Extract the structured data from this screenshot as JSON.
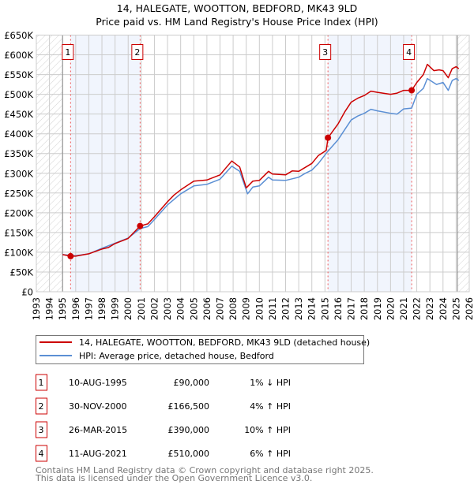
{
  "chart_data": {
    "type": "line",
    "title": "14, HALEGATE, WOOTTON, BEDFORD, MK43 9LD",
    "subtitle": "Price paid vs. HM Land Registry's House Price Index (HPI)",
    "xlabel": "",
    "ylabel": "",
    "xlim": [
      1993,
      2026
    ],
    "ylim": [
      0,
      650000
    ],
    "grid": true,
    "x_ticks": [
      "1993",
      "1994",
      "1995",
      "1996",
      "1997",
      "1998",
      "1999",
      "2000",
      "2001",
      "2002",
      "2003",
      "2004",
      "2005",
      "2006",
      "2007",
      "2008",
      "2009",
      "2010",
      "2011",
      "2012",
      "2013",
      "2014",
      "2015",
      "2016",
      "2017",
      "2018",
      "2019",
      "2020",
      "2021",
      "2022",
      "2023",
      "2024",
      "2025",
      "2026"
    ],
    "y_ticks": [
      {
        "value": 0,
        "label": "£0"
      },
      {
        "value": 50000,
        "label": "£50K"
      },
      {
        "value": 100000,
        "label": "£100K"
      },
      {
        "value": 150000,
        "label": "£150K"
      },
      {
        "value": 200000,
        "label": "£200K"
      },
      {
        "value": 250000,
        "label": "£250K"
      },
      {
        "value": 300000,
        "label": "£300K"
      },
      {
        "value": 350000,
        "label": "£350K"
      },
      {
        "value": 400000,
        "label": "£400K"
      },
      {
        "value": 450000,
        "label": "£450K"
      },
      {
        "value": 500000,
        "label": "£500K"
      },
      {
        "value": 550000,
        "label": "£550K"
      },
      {
        "value": 600000,
        "label": "£600K"
      },
      {
        "value": 650000,
        "label": "£650K"
      }
    ],
    "data_range": [
      1995.0,
      2025.1
    ],
    "shaded_periods": [
      [
        1995.61,
        2000.91
      ],
      [
        2015.23,
        2021.61
      ]
    ],
    "series": [
      {
        "name": "14, HALEGATE, WOOTTON, BEDFORD, MK43 9LD (detached house)",
        "color": "#cc0000",
        "x": [
          1995.0,
          1995.61,
          1996,
          1997,
          1998,
          1998.5,
          1999,
          2000,
          2000.91,
          2001.5,
          2002,
          2003,
          2003.5,
          2004,
          2005,
          2006,
          2007,
          2007.9,
          2008.5,
          2009.0,
          2009.5,
          2010,
          2010.7,
          2011,
          2012,
          2012.5,
          2013,
          2013.5,
          2014,
          2014.5,
          2015.1,
          2015.23,
          2016,
          2016.5,
          2017,
          2017.5,
          2018,
          2018.5,
          2019,
          2020,
          2020.5,
          2021,
          2021.61,
          2022,
          2022.5,
          2022.8,
          2023.3,
          2023.7,
          2024,
          2024.4,
          2024.7,
          2025,
          2025.2
        ],
        "y": [
          94000,
          90000,
          90000,
          96000,
          108000,
          112000,
          122000,
          135000,
          166500,
          172000,
          190000,
          228000,
          245000,
          258000,
          280000,
          283000,
          296000,
          331000,
          316000,
          263000,
          280000,
          282000,
          305000,
          298000,
          296000,
          306000,
          305000,
          315000,
          325000,
          345000,
          358000,
          390000,
          425000,
          455000,
          480000,
          490000,
          497000,
          508000,
          505000,
          500000,
          503000,
          510000,
          510000,
          530000,
          550000,
          576000,
          560000,
          562000,
          560000,
          542000,
          565000,
          570000,
          565000
        ]
      },
      {
        "name": "HPI: Average price, detached house, Bedford",
        "color": "#5b8fd4",
        "x": [
          1995.0,
          1996,
          1997,
          1998,
          1999,
          2000,
          2000.91,
          2001.5,
          2002,
          2003,
          2004,
          2005,
          2006,
          2007,
          2007.9,
          2008.5,
          2009.1,
          2009.5,
          2010,
          2010.7,
          2011,
          2012,
          2013,
          2013.5,
          2014,
          2014.5,
          2015.2,
          2016,
          2016.5,
          2017,
          2017.5,
          2018,
          2018.5,
          2019,
          2020,
          2020.5,
          2021,
          2021.61,
          2022,
          2022.5,
          2022.8,
          2023.5,
          2024,
          2024.4,
          2024.7,
          2025,
          2025.2
        ],
        "y": [
          94000,
          91000,
          96000,
          110000,
          123000,
          136000,
          160000,
          165000,
          183000,
          220000,
          248000,
          268000,
          272000,
          285000,
          318000,
          305000,
          248000,
          265000,
          268000,
          290000,
          283000,
          282000,
          290000,
          300000,
          308000,
          325000,
          355000,
          385000,
          410000,
          435000,
          445000,
          452000,
          462000,
          458000,
          452000,
          450000,
          463000,
          465000,
          500000,
          515000,
          540000,
          525000,
          530000,
          510000,
          535000,
          540000,
          535000
        ]
      }
    ],
    "sales": [
      {
        "label": "1",
        "x": 1995.61,
        "y": 90000
      },
      {
        "label": "2",
        "x": 2000.91,
        "y": 166500
      },
      {
        "label": "3",
        "x": 2015.23,
        "y": 390000
      },
      {
        "label": "4",
        "x": 2021.61,
        "y": 510000
      }
    ]
  },
  "legend": [
    {
      "label": "14, HALEGATE, WOOTTON, BEDFORD, MK43 9LD (detached house)",
      "color": "#cc0000"
    },
    {
      "label": "HPI: Average price, detached house, Bedford",
      "color": "#5b8fd4"
    }
  ],
  "transactions": [
    {
      "num": "1",
      "date": "10-AUG-1995",
      "price": "£90,000",
      "change": "1% ↓ HPI"
    },
    {
      "num": "2",
      "date": "30-NOV-2000",
      "price": "£166,500",
      "change": "4% ↑ HPI"
    },
    {
      "num": "3",
      "date": "26-MAR-2015",
      "price": "£390,000",
      "change": "10% ↑ HPI"
    },
    {
      "num": "4",
      "date": "11-AUG-2021",
      "price": "£510,000",
      "change": "6% ↑ HPI"
    }
  ],
  "footer": {
    "line1": "Contains HM Land Registry data © Crown copyright and database right 2025.",
    "line2": "This data is licensed under the Open Government Licence v3.0."
  }
}
